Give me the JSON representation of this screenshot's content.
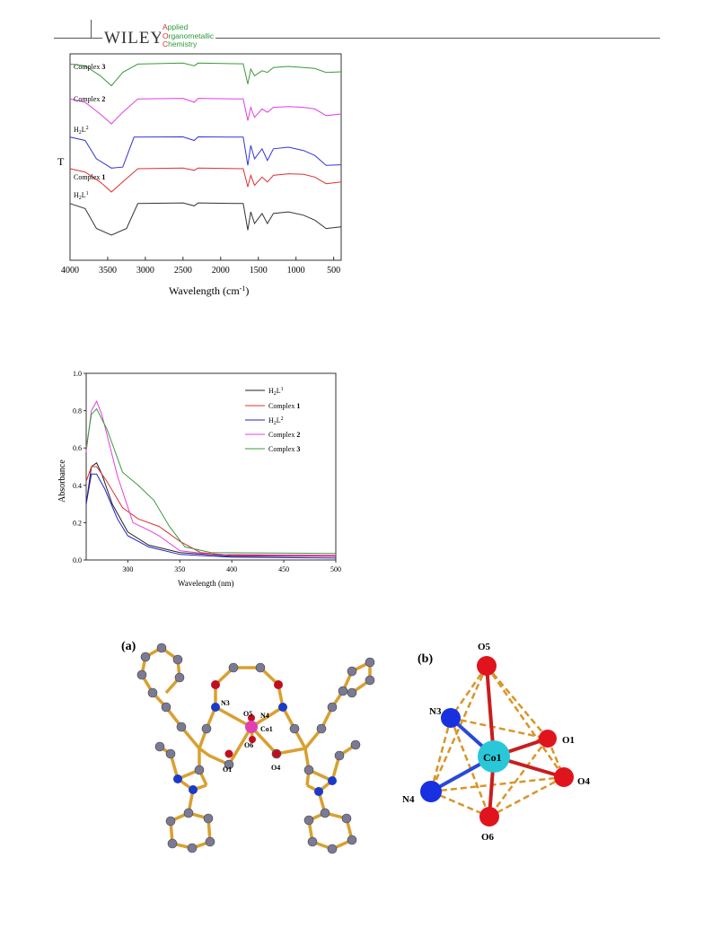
{
  "header": {
    "publisher": "WILEY",
    "journal_initials": [
      "A",
      "O",
      "C"
    ],
    "journal_rest": [
      "pplied",
      "rganometallic",
      "hemistry"
    ]
  },
  "figures": {
    "ir": {
      "ylabel": "T",
      "xlabel": "Wavelength (cm",
      "xlabel_sup": "-1",
      "xlabel_close": ")"
    },
    "uv": {
      "ylabel": "Absorbance",
      "xlabel": "Wavelength (nm)"
    },
    "structure": {
      "panel_a": "(a)",
      "panel_b": "(b)",
      "atoms_a": [
        "N3",
        "O5",
        "N4",
        "Co1",
        "O6",
        "O1",
        "O4"
      ],
      "atoms_b": [
        "O5",
        "N3",
        "O1",
        "Co1",
        "N4",
        "O4",
        "O6"
      ]
    }
  },
  "chart_data": [
    {
      "type": "line",
      "ylabel": "T",
      "xlabel": "Wavelength (cm-1)",
      "x_reversed": true,
      "xlim": [
        4000,
        400
      ],
      "xticks": [
        4000,
        3500,
        3000,
        2500,
        2000,
        1500,
        1000,
        500
      ],
      "series_labels_printed": [
        "Complex 3",
        "Complex 2",
        "H2L2",
        "Complex 1",
        "H2L1"
      ],
      "series": [
        {
          "name": "Complex 3",
          "color": "#3a9a3a",
          "offset": 4.2,
          "points": [
            [
              4000,
              0.95
            ],
            [
              3800,
              0.9
            ],
            [
              3600,
              0.6
            ],
            [
              3450,
              0.3
            ],
            [
              3300,
              0.7
            ],
            [
              3100,
              0.95
            ],
            [
              2500,
              0.98
            ],
            [
              2350,
              0.9
            ],
            [
              2300,
              0.98
            ],
            [
              1700,
              0.96
            ],
            [
              1640,
              0.35
            ],
            [
              1600,
              0.8
            ],
            [
              1550,
              0.6
            ],
            [
              1450,
              0.75
            ],
            [
              1380,
              0.7
            ],
            [
              1300,
              0.85
            ],
            [
              1100,
              0.88
            ],
            [
              900,
              0.85
            ],
            [
              750,
              0.82
            ],
            [
              600,
              0.7
            ],
            [
              400,
              0.72
            ]
          ]
        },
        {
          "name": "Complex 2",
          "color": "#e040e0",
          "offset": 3.15,
          "points": [
            [
              4000,
              0.95
            ],
            [
              3800,
              0.85
            ],
            [
              3600,
              0.5
            ],
            [
              3450,
              0.2
            ],
            [
              3300,
              0.55
            ],
            [
              3100,
              0.95
            ],
            [
              2500,
              0.97
            ],
            [
              2350,
              0.85
            ],
            [
              2300,
              0.97
            ],
            [
              1700,
              0.95
            ],
            [
              1640,
              0.3
            ],
            [
              1600,
              0.7
            ],
            [
              1550,
              0.4
            ],
            [
              1450,
              0.65
            ],
            [
              1380,
              0.55
            ],
            [
              1300,
              0.7
            ],
            [
              1100,
              0.72
            ],
            [
              900,
              0.7
            ],
            [
              750,
              0.65
            ],
            [
              600,
              0.45
            ],
            [
              400,
              0.5
            ]
          ]
        },
        {
          "name": "H2L2",
          "color": "#3333dd",
          "offset": 2.0,
          "points": [
            [
              4000,
              0.95
            ],
            [
              3800,
              0.85
            ],
            [
              3650,
              0.3
            ],
            [
              3450,
              0.02
            ],
            [
              3300,
              0.05
            ],
            [
              3150,
              0.95
            ],
            [
              2500,
              0.96
            ],
            [
              2350,
              0.85
            ],
            [
              2300,
              0.96
            ],
            [
              1700,
              0.95
            ],
            [
              1640,
              0.1
            ],
            [
              1600,
              0.7
            ],
            [
              1550,
              0.3
            ],
            [
              1450,
              0.6
            ],
            [
              1380,
              0.25
            ],
            [
              1300,
              0.6
            ],
            [
              1100,
              0.65
            ],
            [
              900,
              0.55
            ],
            [
              750,
              0.4
            ],
            [
              600,
              0.1
            ],
            [
              400,
              0.12
            ]
          ]
        },
        {
          "name": "Complex 1",
          "color": "#e03030",
          "offset": 1.05,
          "points": [
            [
              4000,
              0.95
            ],
            [
              3800,
              0.85
            ],
            [
              3600,
              0.55
            ],
            [
              3450,
              0.25
            ],
            [
              3300,
              0.55
            ],
            [
              3100,
              0.95
            ],
            [
              2500,
              0.97
            ],
            [
              2350,
              0.9
            ],
            [
              2300,
              0.97
            ],
            [
              1700,
              0.95
            ],
            [
              1640,
              0.4
            ],
            [
              1600,
              0.75
            ],
            [
              1550,
              0.45
            ],
            [
              1450,
              0.7
            ],
            [
              1380,
              0.55
            ],
            [
              1300,
              0.75
            ],
            [
              1100,
              0.8
            ],
            [
              900,
              0.78
            ],
            [
              750,
              0.7
            ],
            [
              600,
              0.5
            ],
            [
              400,
              0.55
            ]
          ]
        },
        {
          "name": "H2L1",
          "color": "#333333",
          "offset": 0.0,
          "points": [
            [
              4000,
              0.95
            ],
            [
              3800,
              0.8
            ],
            [
              3650,
              0.2
            ],
            [
              3450,
              0.0
            ],
            [
              3250,
              0.2
            ],
            [
              3100,
              0.95
            ],
            [
              2500,
              0.97
            ],
            [
              2350,
              0.88
            ],
            [
              2300,
              0.97
            ],
            [
              1700,
              0.95
            ],
            [
              1640,
              0.15
            ],
            [
              1600,
              0.7
            ],
            [
              1550,
              0.35
            ],
            [
              1450,
              0.65
            ],
            [
              1380,
              0.35
            ],
            [
              1300,
              0.65
            ],
            [
              1100,
              0.7
            ],
            [
              900,
              0.6
            ],
            [
              750,
              0.45
            ],
            [
              600,
              0.2
            ],
            [
              400,
              0.25
            ]
          ]
        }
      ]
    },
    {
      "type": "line",
      "ylabel": "Absorbance",
      "xlabel": "Wavelength (nm)",
      "xlim": [
        260,
        500
      ],
      "ylim": [
        0.0,
        1.0
      ],
      "xticks": [
        300,
        350,
        400,
        450,
        500
      ],
      "yticks": [
        0.0,
        0.2,
        0.4,
        0.6,
        0.8,
        1.0
      ],
      "legend_position": "top-right",
      "series": [
        {
          "name": "H2L1",
          "color": "#222222",
          "points": [
            [
              260,
              0.3
            ],
            [
              265,
              0.5
            ],
            [
              270,
              0.52
            ],
            [
              275,
              0.46
            ],
            [
              285,
              0.3
            ],
            [
              300,
              0.15
            ],
            [
              320,
              0.08
            ],
            [
              350,
              0.04
            ],
            [
              400,
              0.02
            ],
            [
              500,
              0.02
            ]
          ]
        },
        {
          "name": "Complex 1",
          "color": "#e03030",
          "points": [
            [
              260,
              0.42
            ],
            [
              265,
              0.5
            ],
            [
              270,
              0.5
            ],
            [
              280,
              0.42
            ],
            [
              295,
              0.28
            ],
            [
              310,
              0.22
            ],
            [
              330,
              0.18
            ],
            [
              350,
              0.1
            ],
            [
              370,
              0.04
            ],
            [
              400,
              0.025
            ],
            [
              500,
              0.02
            ]
          ]
        },
        {
          "name": "H2L2",
          "color": "#2020cc",
          "points": [
            [
              260,
              0.3
            ],
            [
              265,
              0.46
            ],
            [
              270,
              0.46
            ],
            [
              278,
              0.38
            ],
            [
              290,
              0.22
            ],
            [
              300,
              0.13
            ],
            [
              320,
              0.07
            ],
            [
              350,
              0.03
            ],
            [
              400,
              0.015
            ],
            [
              500,
              0.01
            ]
          ]
        },
        {
          "name": "Complex 2",
          "color": "#e040e0",
          "points": [
            [
              260,
              0.58
            ],
            [
              265,
              0.8
            ],
            [
              270,
              0.85
            ],
            [
              275,
              0.78
            ],
            [
              290,
              0.45
            ],
            [
              305,
              0.2
            ],
            [
              320,
              0.16
            ],
            [
              330,
              0.13
            ],
            [
              350,
              0.05
            ],
            [
              380,
              0.03
            ],
            [
              500,
              0.025
            ]
          ]
        },
        {
          "name": "Complex 3",
          "color": "#3a9a3a",
          "points": [
            [
              260,
              0.6
            ],
            [
              265,
              0.78
            ],
            [
              270,
              0.81
            ],
            [
              280,
              0.7
            ],
            [
              295,
              0.47
            ],
            [
              310,
              0.4
            ],
            [
              325,
              0.32
            ],
            [
              340,
              0.18
            ],
            [
              355,
              0.07
            ],
            [
              380,
              0.04
            ],
            [
              500,
              0.035
            ]
          ]
        }
      ]
    }
  ]
}
